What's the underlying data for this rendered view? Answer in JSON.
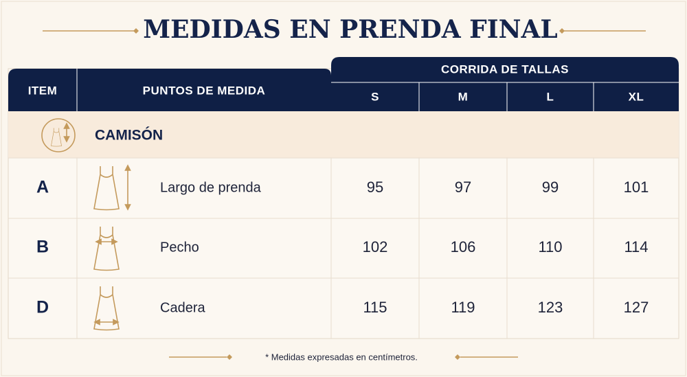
{
  "title": "MEDIDAS EN PRENDA FINAL",
  "table": {
    "header": {
      "item": "ITEM",
      "points": "PUNTOS DE MEDIDA",
      "sizes_title": "CORRIDA DE TALLAS",
      "sizes": [
        "S",
        "M",
        "L",
        "XL"
      ]
    },
    "section": "CAMISÓN",
    "rows": [
      {
        "item": "A",
        "label": "Largo de prenda",
        "values": [
          95,
          97,
          99,
          101
        ]
      },
      {
        "item": "B",
        "label": "Pecho",
        "values": [
          102,
          106,
          110,
          114
        ]
      },
      {
        "item": "D",
        "label": "Cadera",
        "values": [
          115,
          119,
          123,
          127
        ]
      }
    ]
  },
  "footnote": "* Medidas expresadas en centímetros."
}
